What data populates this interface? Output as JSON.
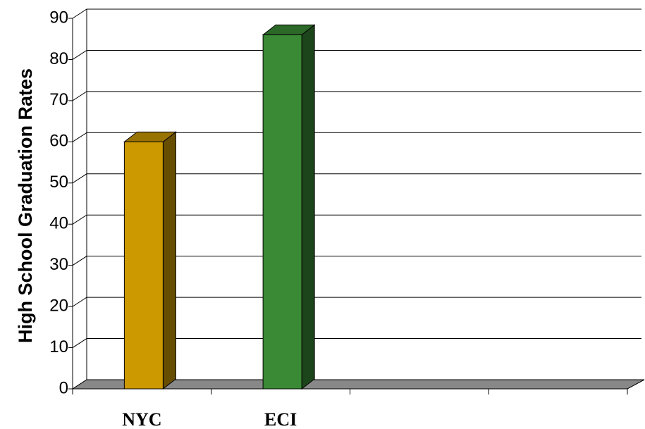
{
  "chart_data": {
    "type": "bar3d",
    "y_label": "High School Graduation Rates",
    "categories": [
      "NYC",
      "ECI",
      null,
      null
    ],
    "values": [
      60,
      86,
      null,
      null
    ],
    "colors": [
      "#cc9900",
      "#3a8a35",
      null,
      null
    ],
    "ylim": [
      0,
      90
    ],
    "yticks": [
      0,
      10,
      20,
      30,
      40,
      50,
      60,
      70,
      80,
      90
    ],
    "grid": true
  }
}
